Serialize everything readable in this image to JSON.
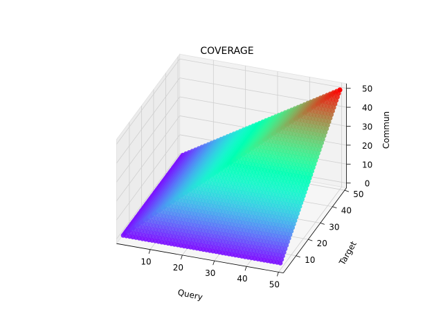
{
  "chart_data": {
    "type": "scatter",
    "projection": "3d",
    "title": "COVERAGE",
    "xlabel": "Query",
    "ylabel": "Target",
    "zlabel": "Commun",
    "xlim": [
      1,
      50
    ],
    "ylim": [
      1,
      50
    ],
    "zlim": [
      0,
      50
    ],
    "x_ticks": [
      10,
      20,
      30,
      40,
      50
    ],
    "y_ticks": [
      10,
      20,
      30,
      40,
      50
    ],
    "z_ticks": [
      0,
      10,
      20,
      30,
      40,
      50
    ],
    "grid": true,
    "colormap": "rainbow",
    "point_grid": {
      "query_range": [
        1,
        50
      ],
      "target_range": [
        1,
        50
      ]
    },
    "value_rule": "Commun = min(Query, Target)",
    "max_point": {
      "query": 50,
      "target": 50,
      "commun": 50,
      "color": "#ff0000"
    }
  }
}
